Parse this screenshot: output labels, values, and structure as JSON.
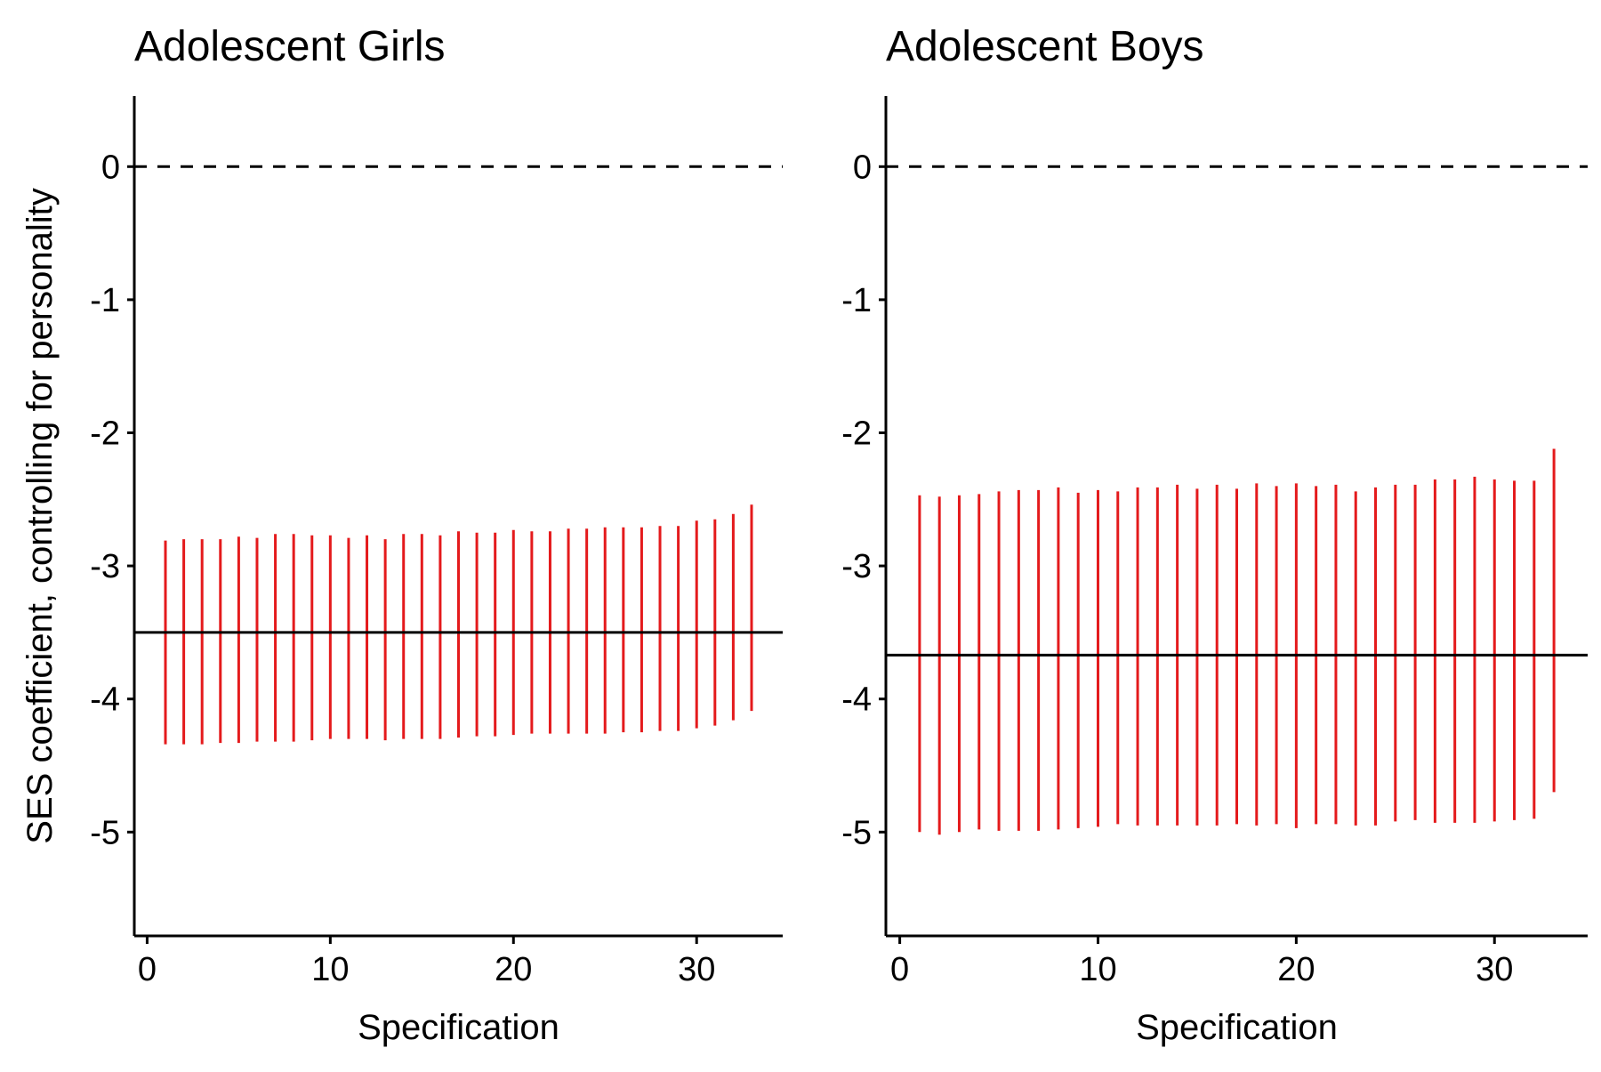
{
  "chart_data": {
    "type": "errorbar",
    "ylabel": "SES coefficient, controlling for personality",
    "panels": [
      {
        "title": "Adolescent Girls",
        "xlabel": "Specification",
        "xlim": [
          -0.7,
          34.7
        ],
        "ylim": [
          -5.78,
          0.53
        ],
        "xticks": [
          "0",
          "10",
          "20",
          "30"
        ],
        "yticks": [
          "0",
          "-1",
          "-2",
          "-3",
          "-4",
          "-5"
        ],
        "reference_line_dashed": 0,
        "reference_line_solid": -3.5,
        "bar_color": "#e41a1c",
        "specification": [
          1,
          2,
          3,
          4,
          5,
          6,
          7,
          8,
          9,
          10,
          11,
          12,
          13,
          14,
          15,
          16,
          17,
          18,
          19,
          20,
          21,
          22,
          23,
          24,
          25,
          26,
          27,
          28,
          29,
          30,
          31,
          32,
          33
        ],
        "lower": [
          -4.34,
          -4.34,
          -4.34,
          -4.33,
          -4.33,
          -4.32,
          -4.32,
          -4.32,
          -4.31,
          -4.3,
          -4.3,
          -4.3,
          -4.31,
          -4.3,
          -4.3,
          -4.3,
          -4.29,
          -4.28,
          -4.28,
          -4.27,
          -4.26,
          -4.26,
          -4.26,
          -4.26,
          -4.26,
          -4.25,
          -4.25,
          -4.24,
          -4.24,
          -4.22,
          -4.2,
          -4.16,
          -4.09
        ],
        "upper": [
          -2.81,
          -2.8,
          -2.8,
          -2.8,
          -2.78,
          -2.79,
          -2.76,
          -2.76,
          -2.77,
          -2.77,
          -2.79,
          -2.77,
          -2.8,
          -2.76,
          -2.76,
          -2.77,
          -2.74,
          -2.75,
          -2.75,
          -2.73,
          -2.74,
          -2.74,
          -2.72,
          -2.72,
          -2.71,
          -2.71,
          -2.71,
          -2.7,
          -2.7,
          -2.66,
          -2.65,
          -2.61,
          -2.54
        ]
      },
      {
        "title": "Adolescent Boys",
        "xlabel": "Specification",
        "xlim": [
          -0.7,
          34.7
        ],
        "ylim": [
          -5.78,
          0.53
        ],
        "xticks": [
          "0",
          "10",
          "20",
          "30"
        ],
        "yticks": [
          "0",
          "-1",
          "-2",
          "-3",
          "-4",
          "-5"
        ],
        "reference_line_dashed": 0,
        "reference_line_solid": -3.67,
        "bar_color": "#e41a1c",
        "specification": [
          1,
          2,
          3,
          4,
          5,
          6,
          7,
          8,
          9,
          10,
          11,
          12,
          13,
          14,
          15,
          16,
          17,
          18,
          19,
          20,
          21,
          22,
          23,
          24,
          25,
          26,
          27,
          28,
          29,
          30,
          31,
          32,
          33
        ],
        "lower": [
          -5.0,
          -5.02,
          -5.0,
          -4.98,
          -4.99,
          -4.99,
          -4.99,
          -4.98,
          -4.97,
          -4.96,
          -4.94,
          -4.95,
          -4.95,
          -4.95,
          -4.95,
          -4.95,
          -4.94,
          -4.95,
          -4.94,
          -4.97,
          -4.94,
          -4.94,
          -4.95,
          -4.95,
          -4.92,
          -4.91,
          -4.93,
          -4.93,
          -4.93,
          -4.92,
          -4.91,
          -4.9,
          -4.7
        ],
        "upper": [
          -2.47,
          -2.48,
          -2.47,
          -2.46,
          -2.44,
          -2.43,
          -2.43,
          -2.41,
          -2.45,
          -2.43,
          -2.44,
          -2.41,
          -2.41,
          -2.39,
          -2.42,
          -2.39,
          -2.42,
          -2.38,
          -2.4,
          -2.38,
          -2.4,
          -2.39,
          -2.44,
          -2.41,
          -2.39,
          -2.39,
          -2.35,
          -2.35,
          -2.33,
          -2.35,
          -2.36,
          -2.36,
          -2.12
        ]
      }
    ]
  }
}
